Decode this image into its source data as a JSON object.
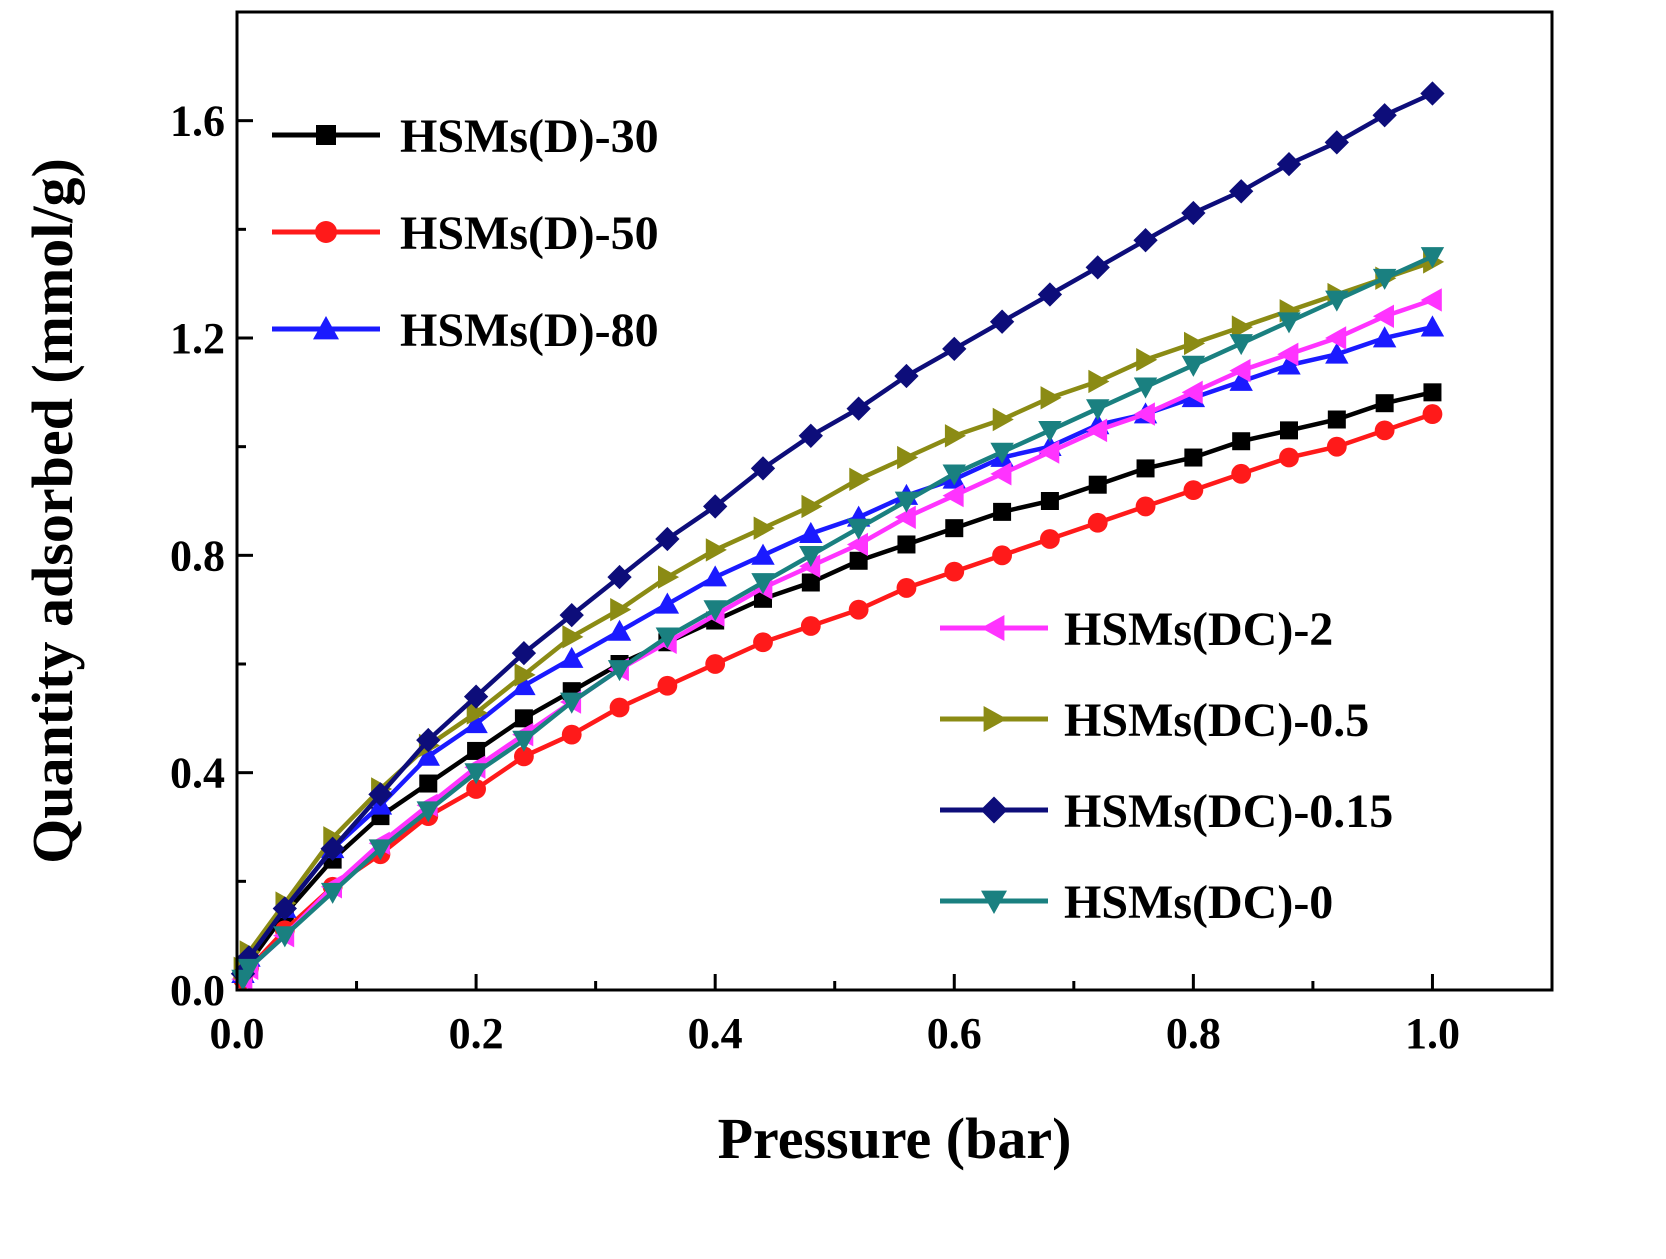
{
  "chart_data": {
    "type": "line",
    "title": "",
    "xlabel": "Pressure (bar)",
    "ylabel": "Quantity adsorbed (mmol/g)",
    "xlim": [
      0.0,
      1.1
    ],
    "ylim": [
      0.0,
      1.8
    ],
    "xticks": [
      0.0,
      0.2,
      0.4,
      0.6,
      0.8,
      1.0
    ],
    "xtick_labels": [
      "0.0",
      "0.2",
      "0.4",
      "0.6",
      "0.8",
      "1.0"
    ],
    "yticks": [
      0.0,
      0.4,
      0.8,
      1.2,
      1.6
    ],
    "ytick_labels": [
      "0.0",
      "0.4",
      "0.8",
      "1.2",
      "1.6"
    ],
    "x": [
      0.005,
      0.01,
      0.04,
      0.08,
      0.12,
      0.16,
      0.2,
      0.24,
      0.28,
      0.32,
      0.36,
      0.4,
      0.44,
      0.48,
      0.52,
      0.56,
      0.6,
      0.64,
      0.68,
      0.72,
      0.76,
      0.8,
      0.84,
      0.88,
      0.92,
      0.96,
      1.0
    ],
    "series": [
      {
        "name": "HSMs(D)-30",
        "color": "#000000",
        "marker": "square",
        "values": [
          0.03,
          0.05,
          0.14,
          0.24,
          0.32,
          0.38,
          0.44,
          0.5,
          0.55,
          0.6,
          0.64,
          0.68,
          0.72,
          0.75,
          0.79,
          0.82,
          0.85,
          0.88,
          0.9,
          0.93,
          0.96,
          0.98,
          1.01,
          1.03,
          1.05,
          1.08,
          1.1
        ]
      },
      {
        "name": "HSMs(D)-50",
        "color": "#ff1a1a",
        "marker": "circle",
        "values": [
          0.02,
          0.04,
          0.11,
          0.19,
          0.25,
          0.32,
          0.37,
          0.43,
          0.47,
          0.52,
          0.56,
          0.6,
          0.64,
          0.67,
          0.7,
          0.74,
          0.77,
          0.8,
          0.83,
          0.86,
          0.89,
          0.92,
          0.95,
          0.98,
          1.0,
          1.03,
          1.06
        ]
      },
      {
        "name": "HSMs(D)-80",
        "color": "#1a1aff",
        "marker": "triangle-up",
        "values": [
          0.03,
          0.06,
          0.15,
          0.26,
          0.34,
          0.43,
          0.49,
          0.56,
          0.61,
          0.66,
          0.71,
          0.76,
          0.8,
          0.84,
          0.87,
          0.91,
          0.94,
          0.98,
          1.0,
          1.04,
          1.06,
          1.09,
          1.12,
          1.15,
          1.17,
          1.2,
          1.22
        ]
      },
      {
        "name": "HSMs(DC)-2",
        "color": "#ff33ff",
        "marker": "triangle-left",
        "values": [
          0.02,
          0.04,
          0.1,
          0.19,
          0.27,
          0.34,
          0.41,
          0.47,
          0.53,
          0.59,
          0.64,
          0.69,
          0.74,
          0.78,
          0.82,
          0.87,
          0.91,
          0.95,
          0.99,
          1.03,
          1.06,
          1.1,
          1.14,
          1.17,
          1.2,
          1.24,
          1.27
        ]
      },
      {
        "name": "HSMs(DC)-0.5",
        "color": "#8b8b14",
        "marker": "triangle-right",
        "values": [
          0.04,
          0.07,
          0.16,
          0.28,
          0.37,
          0.45,
          0.51,
          0.58,
          0.65,
          0.7,
          0.76,
          0.81,
          0.85,
          0.89,
          0.94,
          0.98,
          1.02,
          1.05,
          1.09,
          1.12,
          1.16,
          1.19,
          1.22,
          1.25,
          1.28,
          1.31,
          1.34
        ]
      },
      {
        "name": "HSMs(DC)-0.15",
        "color": "#0d0d7a",
        "marker": "diamond",
        "values": [
          0.03,
          0.06,
          0.15,
          0.26,
          0.36,
          0.46,
          0.54,
          0.62,
          0.69,
          0.76,
          0.83,
          0.89,
          0.96,
          1.02,
          1.07,
          1.13,
          1.18,
          1.23,
          1.28,
          1.33,
          1.38,
          1.43,
          1.47,
          1.52,
          1.56,
          1.61,
          1.65
        ]
      },
      {
        "name": "HSMs(DC)-0",
        "color": "#1a8080",
        "marker": "triangle-down",
        "values": [
          0.02,
          0.04,
          0.1,
          0.18,
          0.26,
          0.33,
          0.4,
          0.46,
          0.53,
          0.59,
          0.65,
          0.7,
          0.75,
          0.8,
          0.85,
          0.9,
          0.95,
          0.99,
          1.03,
          1.07,
          1.11,
          1.15,
          1.19,
          1.23,
          1.27,
          1.31,
          1.35
        ]
      }
    ],
    "legend": [
      {
        "group": "top-left",
        "entries": [
          "HSMs(D)-30",
          "HSMs(D)-50",
          "HSMs(D)-80"
        ]
      },
      {
        "group": "bottom-right",
        "entries": [
          "HSMs(DC)-2",
          "HSMs(DC)-0.5",
          "HSMs(DC)-0.15",
          "HSMs(DC)-0"
        ]
      }
    ],
    "grid": false
  }
}
